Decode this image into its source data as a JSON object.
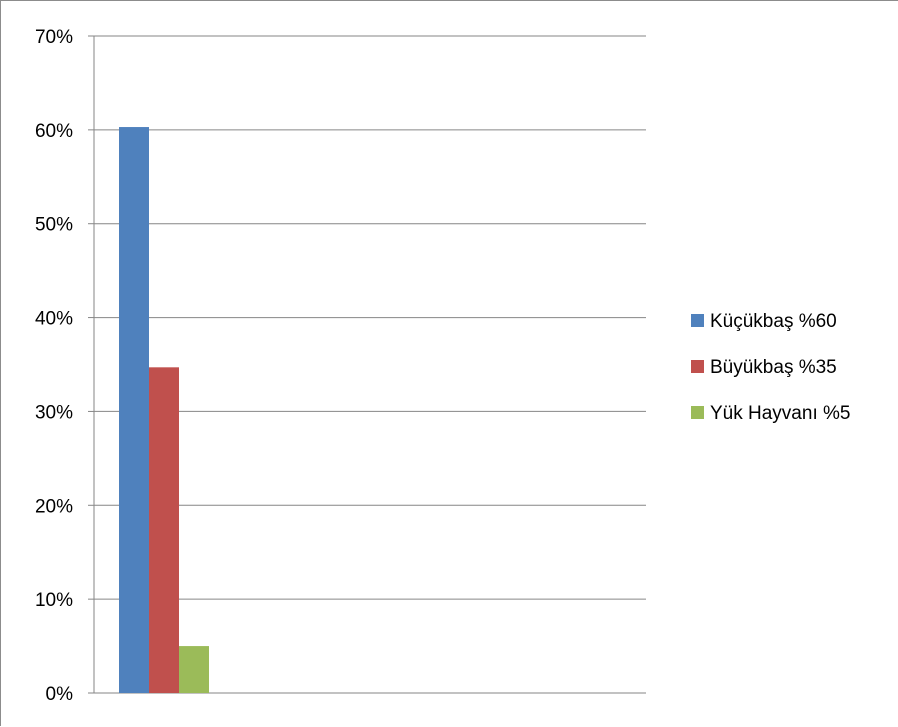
{
  "chart_data": {
    "type": "bar",
    "title": "",
    "xlabel": "",
    "ylabel": "",
    "categories": [
      ""
    ],
    "series": [
      {
        "name": "Küçükbaş %60",
        "values": [
          0.603
        ],
        "color": "#4f81bd"
      },
      {
        "name": "Büyükbaş %35",
        "values": [
          0.347
        ],
        "color": "#c0504d"
      },
      {
        "name": "Yük Hayvanı %5",
        "values": [
          0.05
        ],
        "color": "#9bbb59"
      }
    ],
    "ylim": [
      0,
      0.7
    ],
    "yticks": [
      0,
      0.1,
      0.2,
      0.3,
      0.4,
      0.5,
      0.6,
      0.7
    ],
    "ytick_labels": [
      "0%",
      "10%",
      "20%",
      "30%",
      "40%",
      "50%",
      "60%",
      "70%"
    ],
    "grid": true,
    "legend_position": "right"
  }
}
